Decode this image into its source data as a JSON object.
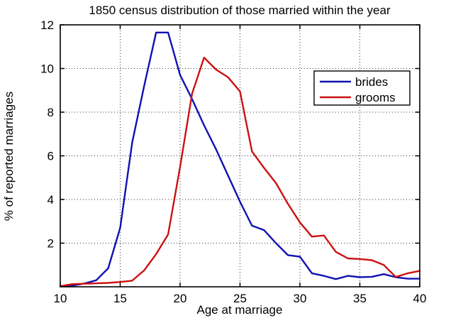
{
  "window": {
    "background": "#ffffff"
  },
  "chart_data": {
    "type": "line",
    "title": "1850 census distribution of those married within the year",
    "xlabel": "Age at marriage",
    "ylabel": "% of reported marriages",
    "xlim": [
      10,
      40
    ],
    "ylim": [
      0,
      12
    ],
    "x_ticks": [
      10,
      15,
      20,
      25,
      30,
      35,
      40
    ],
    "y_ticks": [
      2,
      4,
      6,
      8,
      10,
      12
    ],
    "grid": true,
    "grid_style": "dotted",
    "frame_color": "#000000",
    "legend": {
      "position": "upper right",
      "entries": [
        "brides",
        "grooms"
      ]
    },
    "x": [
      10,
      11,
      12,
      13,
      14,
      15,
      16,
      17,
      18,
      19,
      20,
      21,
      22,
      23,
      24,
      25,
      26,
      27,
      28,
      29,
      30,
      31,
      32,
      33,
      34,
      35,
      36,
      37,
      38,
      39,
      40
    ],
    "series": [
      {
        "name": "brides",
        "color": "#1111b3",
        "values": [
          0.02,
          0.05,
          0.15,
          0.3,
          0.85,
          2.7,
          6.6,
          9.2,
          11.65,
          11.65,
          9.7,
          8.6,
          7.4,
          6.3,
          5.1,
          3.9,
          2.8,
          2.6,
          2.0,
          1.45,
          1.38,
          0.62,
          0.5,
          0.35,
          0.5,
          0.44,
          0.46,
          0.58,
          0.44,
          0.37,
          0.37
        ]
      },
      {
        "name": "grooms",
        "color": "#cc1111",
        "values": [
          0.03,
          0.12,
          0.14,
          0.16,
          0.18,
          0.22,
          0.28,
          0.75,
          1.5,
          2.4,
          5.5,
          8.85,
          10.5,
          9.95,
          9.6,
          8.95,
          6.2,
          5.45,
          4.75,
          3.8,
          2.95,
          2.3,
          2.35,
          1.6,
          1.3,
          1.27,
          1.22,
          1.0,
          0.45,
          0.62,
          0.73
        ]
      }
    ]
  }
}
